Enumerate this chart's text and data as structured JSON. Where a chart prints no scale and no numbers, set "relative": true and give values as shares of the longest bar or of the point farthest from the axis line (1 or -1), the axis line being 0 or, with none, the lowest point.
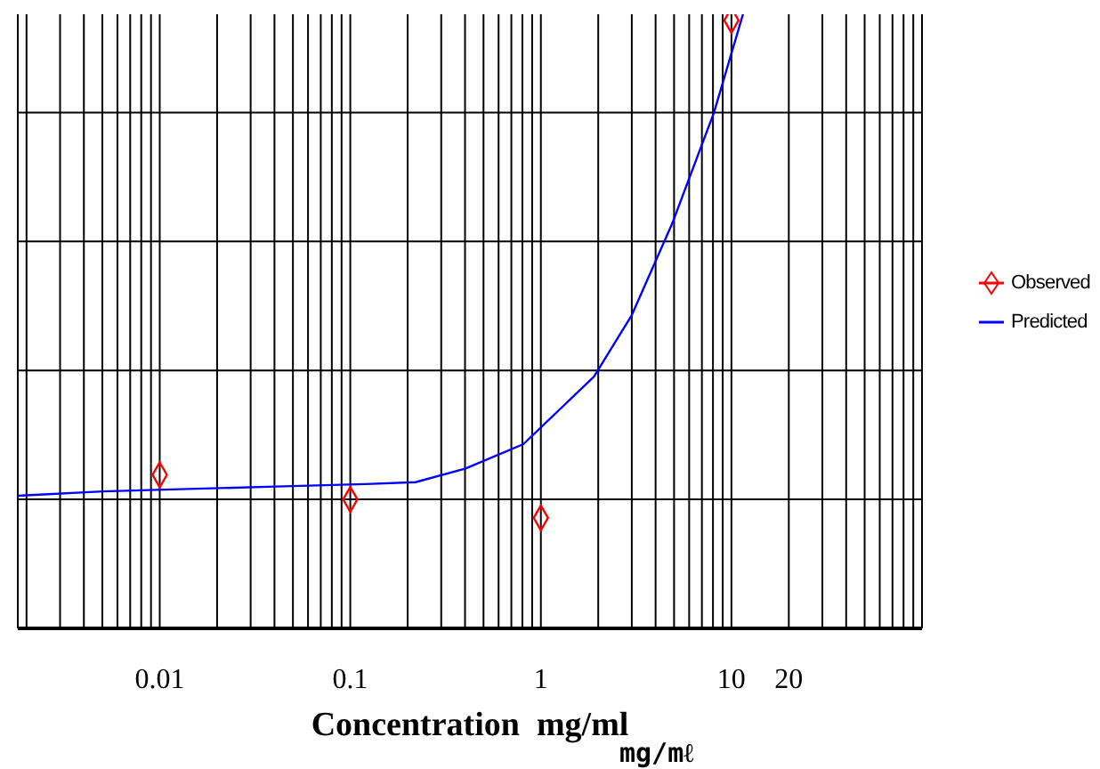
{
  "chart_data": {
    "type": "line",
    "xlabel": "Concentration  mg/ml",
    "annotations": [
      "mg/mℓ"
    ],
    "log": "x",
    "relative": true,
    "grid": true,
    "legend": "right",
    "xlim": [
      0.0018,
      100
    ],
    "xticks": [
      {
        "value": 0.002,
        "label": null
      },
      {
        "value": 0.003,
        "label": null
      },
      {
        "value": 0.004,
        "label": null
      },
      {
        "value": 0.005,
        "label": null
      },
      {
        "value": 0.006,
        "label": null
      },
      {
        "value": 0.007,
        "label": null
      },
      {
        "value": 0.008,
        "label": null
      },
      {
        "value": 0.009,
        "label": null
      },
      0.01,
      {
        "value": 0.02,
        "label": null
      },
      {
        "value": 0.03,
        "label": null
      },
      {
        "value": 0.04,
        "label": null
      },
      {
        "value": 0.05,
        "label": null
      },
      {
        "value": 0.06,
        "label": null
      },
      {
        "value": 0.07,
        "label": null
      },
      {
        "value": 0.08,
        "label": null
      },
      {
        "value": 0.09,
        "label": null
      },
      0.1,
      {
        "value": 0.2,
        "label": null
      },
      {
        "value": 0.3,
        "label": null
      },
      {
        "value": 0.4,
        "label": null
      },
      {
        "value": 0.5,
        "label": null
      },
      {
        "value": 0.6,
        "label": null
      },
      {
        "value": 0.7,
        "label": null
      },
      {
        "value": 0.8,
        "label": null
      },
      {
        "value": 0.9,
        "label": null
      },
      1,
      {
        "value": 2,
        "label": null
      },
      {
        "value": 3,
        "label": null
      },
      {
        "value": 4,
        "label": null
      },
      {
        "value": 5,
        "label": null
      },
      {
        "value": 6,
        "label": null
      },
      {
        "value": 7,
        "label": null
      },
      {
        "value": 8,
        "label": null
      },
      {
        "value": 9,
        "label": null
      },
      10,
      20,
      {
        "value": 30,
        "label": null
      },
      {
        "value": 40,
        "label": null
      },
      {
        "value": 50,
        "label": null
      },
      {
        "value": 60,
        "label": null
      },
      {
        "value": 70,
        "label": null
      },
      {
        "value": 80,
        "label": null
      },
      {
        "value": 90,
        "label": null
      },
      {
        "value": 100,
        "label": null
      }
    ],
    "series": [
      {
        "name": "Observed",
        "type": "scatter",
        "marker": "diamond",
        "color": "#ff0000",
        "x": [
          0.01,
          0.1,
          1,
          10
        ],
        "values": [
          0.25,
          0.21,
          0.18,
          0.99
        ]
      },
      {
        "name": "Predicted",
        "marker": "none",
        "color": "#0000ff",
        "x": [
          0.0018,
          0.005,
          0.014,
          0.041,
          0.12,
          0.22,
          0.4,
          0.81,
          1.9,
          3,
          4.9,
          8.1,
          11.5
        ],
        "values": [
          0.216,
          0.223,
          0.227,
          0.231,
          0.235,
          0.238,
          0.26,
          0.3,
          0.41,
          0.51,
          0.66,
          0.84,
          1
        ]
      }
    ]
  }
}
